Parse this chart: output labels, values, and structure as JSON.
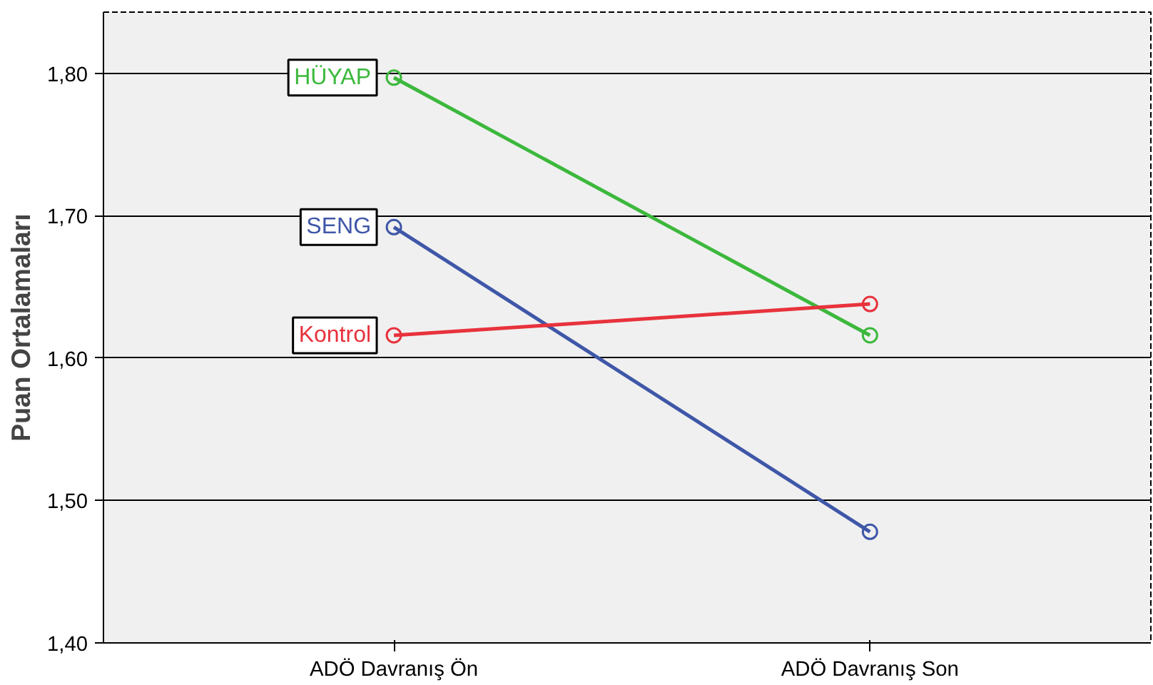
{
  "chart_data": {
    "type": "line",
    "ylabel": "Puan Ortalamaları",
    "categories": [
      "ADÖ Davranış Ön",
      "ADÖ Davranış Son"
    ],
    "series": [
      {
        "name": "HÜYAP",
        "color": "#3cb83c",
        "values": [
          1.797,
          1.616
        ]
      },
      {
        "name": "SENG",
        "color": "#3f57a8",
        "values": [
          1.692,
          1.478
        ]
      },
      {
        "name": "Kontrol",
        "color": "#e8323c",
        "values": [
          1.616,
          1.638
        ]
      }
    ],
    "ylim": [
      1.4,
      1.843
    ],
    "yticks": [
      {
        "value": 1.4,
        "label": "1,40"
      },
      {
        "value": 1.5,
        "label": "1,50"
      },
      {
        "value": 1.6,
        "label": "1,60"
      },
      {
        "value": 1.7,
        "label": "1,70"
      },
      {
        "value": 1.8,
        "label": "1,80"
      }
    ],
    "grid": "y",
    "marker": "circle",
    "line_style": "solid"
  }
}
